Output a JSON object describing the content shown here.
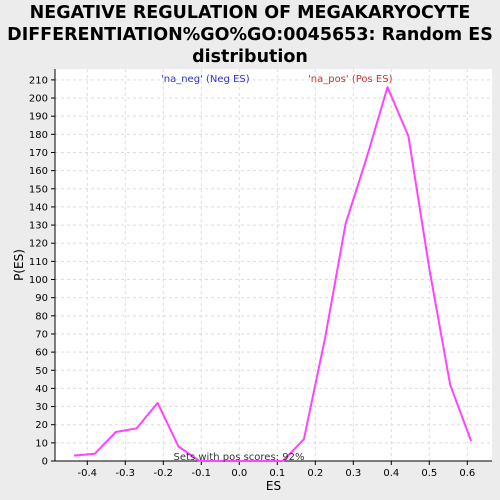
{
  "title_lines": [
    "NEGATIVE REGULATION OF MEGAKARYOCYTE",
    "DIFFERENTIATION%GO%GO:0045653: Random ES",
    "distribution"
  ],
  "colors": {
    "line": "#ff44ff",
    "neg_label": "#3333cc",
    "pos_label": "#cc3333",
    "grid": "#dddddd",
    "plot_bg": "#ffffff",
    "page_bg": "#ececec"
  },
  "annotations": {
    "neg": "'na_neg' (Neg ES)",
    "pos": "'na_pos' (Pos ES)",
    "footer": "Sets with pos scores: 92%"
  },
  "chart_data": {
    "type": "line",
    "xlabel": "ES",
    "ylabel": "P(ES)",
    "xlim": [
      -0.485,
      0.665
    ],
    "ylim": [
      0,
      216
    ],
    "xticks": [
      -0.4,
      -0.3,
      -0.2,
      -0.1,
      0.0,
      0.1,
      0.2,
      0.3,
      0.4,
      0.5,
      0.6
    ],
    "yticks": [
      0,
      10,
      20,
      30,
      40,
      50,
      60,
      70,
      80,
      90,
      100,
      110,
      120,
      130,
      140,
      150,
      160,
      170,
      180,
      190,
      200,
      210
    ],
    "grid": true,
    "series": [
      {
        "x": [
          -0.435,
          -0.38,
          -0.325,
          -0.27,
          -0.215,
          -0.16,
          -0.105,
          -0.05,
          0.005,
          0.06,
          0.115,
          0.17,
          0.225,
          0.28,
          0.335,
          0.39,
          0.445,
          0.5,
          0.555,
          0.61
        ],
        "y": [
          3,
          4,
          16,
          18,
          32,
          8,
          0,
          0,
          0,
          0,
          0,
          12,
          67,
          131,
          167,
          206,
          179,
          106,
          42,
          11
        ]
      }
    ]
  }
}
